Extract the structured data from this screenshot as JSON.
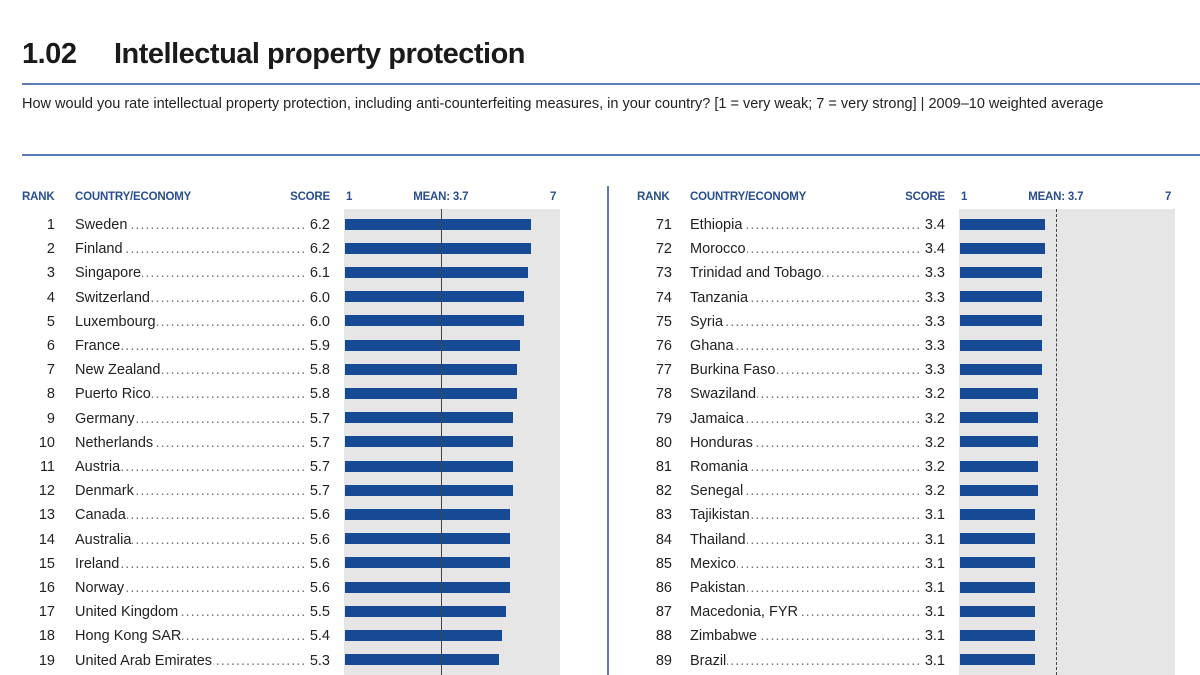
{
  "header": {
    "number": "1.02",
    "title": "Intellectual property protection",
    "subtitle": "How would you rate intellectual property protection, including anti-counterfeiting measures, in your country? [1 = very weak; 7 = very strong]  |  2009–10 weighted average"
  },
  "columns": {
    "rank": "RANK",
    "country": "COUNTRY/ECONOMY",
    "score": "SCORE",
    "scale_min": "1",
    "mean": "MEAN: 3.7",
    "scale_max": "7"
  },
  "chart_data": [
    {
      "type": "bar",
      "orientation": "horizontal",
      "xlim": [
        1,
        7
      ],
      "mean": 3.7,
      "rows": [
        {
          "rank": "1",
          "country": "Sweden",
          "score": "6.2",
          "value": 6.2
        },
        {
          "rank": "2",
          "country": "Finland",
          "score": "6.2",
          "value": 6.2
        },
        {
          "rank": "3",
          "country": "Singapore",
          "score": "6.1",
          "value": 6.1
        },
        {
          "rank": "4",
          "country": "Switzerland",
          "score": "6.0",
          "value": 6.0
        },
        {
          "rank": "5",
          "country": "Luxembourg",
          "score": "6.0",
          "value": 6.0
        },
        {
          "rank": "6",
          "country": "France",
          "score": "5.9",
          "value": 5.9
        },
        {
          "rank": "7",
          "country": "New Zealand",
          "score": "5.8",
          "value": 5.8
        },
        {
          "rank": "8",
          "country": "Puerto Rico",
          "score": "5.8",
          "value": 5.8
        },
        {
          "rank": "9",
          "country": "Germany",
          "score": "5.7",
          "value": 5.7
        },
        {
          "rank": "10",
          "country": "Netherlands",
          "score": "5.7",
          "value": 5.7
        },
        {
          "rank": "11",
          "country": "Austria",
          "score": "5.7",
          "value": 5.7
        },
        {
          "rank": "12",
          "country": "Denmark",
          "score": "5.7",
          "value": 5.7
        },
        {
          "rank": "13",
          "country": "Canada",
          "score": "5.6",
          "value": 5.6
        },
        {
          "rank": "14",
          "country": "Australia",
          "score": "5.6",
          "value": 5.6
        },
        {
          "rank": "15",
          "country": "Ireland",
          "score": "5.6",
          "value": 5.6
        },
        {
          "rank": "16",
          "country": "Norway",
          "score": "5.6",
          "value": 5.6
        },
        {
          "rank": "17",
          "country": "United Kingdom",
          "score": "5.5",
          "value": 5.5
        },
        {
          "rank": "18",
          "country": "Hong Kong SAR",
          "score": "5.4",
          "value": 5.4
        },
        {
          "rank": "19",
          "country": "United Arab Emirates",
          "score": "5.3",
          "value": 5.3
        }
      ]
    },
    {
      "type": "bar",
      "orientation": "horizontal",
      "xlim": [
        1,
        7
      ],
      "mean": 3.7,
      "rows": [
        {
          "rank": "71",
          "country": "Ethiopia",
          "score": "3.4",
          "value": 3.4
        },
        {
          "rank": "72",
          "country": "Morocco",
          "score": "3.4",
          "value": 3.4
        },
        {
          "rank": "73",
          "country": "Trinidad and Tobago",
          "score": "3.3",
          "value": 3.3
        },
        {
          "rank": "74",
          "country": "Tanzania",
          "score": "3.3",
          "value": 3.3
        },
        {
          "rank": "75",
          "country": "Syria",
          "score": "3.3",
          "value": 3.3
        },
        {
          "rank": "76",
          "country": "Ghana",
          "score": "3.3",
          "value": 3.3
        },
        {
          "rank": "77",
          "country": "Burkina Faso",
          "score": "3.3",
          "value": 3.3
        },
        {
          "rank": "78",
          "country": "Swaziland",
          "score": "3.2",
          "value": 3.2
        },
        {
          "rank": "79",
          "country": "Jamaica",
          "score": "3.2",
          "value": 3.2
        },
        {
          "rank": "80",
          "country": "Honduras",
          "score": "3.2",
          "value": 3.2
        },
        {
          "rank": "81",
          "country": "Romania",
          "score": "3.2",
          "value": 3.2
        },
        {
          "rank": "82",
          "country": "Senegal",
          "score": "3.2",
          "value": 3.2
        },
        {
          "rank": "83",
          "country": "Tajikistan",
          "score": "3.1",
          "value": 3.1
        },
        {
          "rank": "84",
          "country": "Thailand",
          "score": "3.1",
          "value": 3.1
        },
        {
          "rank": "85",
          "country": "Mexico",
          "score": "3.1",
          "value": 3.1
        },
        {
          "rank": "86",
          "country": "Pakistan",
          "score": "3.1",
          "value": 3.1
        },
        {
          "rank": "87",
          "country": "Macedonia, FYR",
          "score": "3.1",
          "value": 3.1
        },
        {
          "rank": "88",
          "country": "Zimbabwe",
          "score": "3.1",
          "value": 3.1
        },
        {
          "rank": "89",
          "country": "Brazil",
          "score": "3.1",
          "value": 3.1
        }
      ]
    }
  ],
  "colors": {
    "bar": "#174a94",
    "plot_background": "#e6e6e6",
    "rule": "#5a7bb5",
    "column_header": "#2a4f8f"
  }
}
